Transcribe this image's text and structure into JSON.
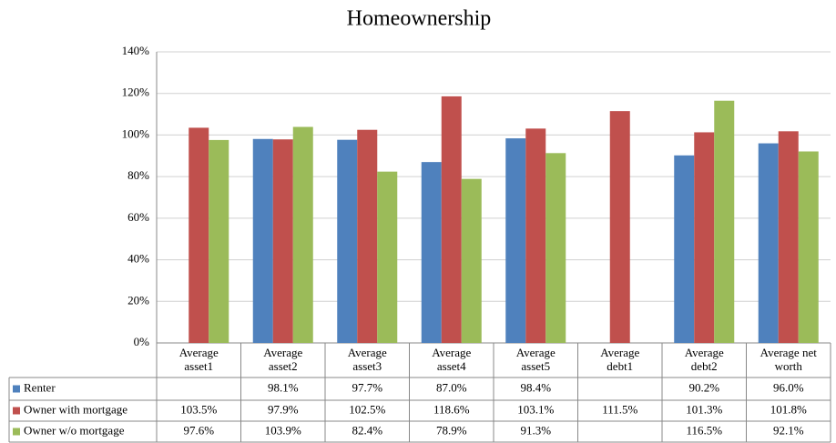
{
  "chart_data": {
    "type": "bar",
    "title": "Homeownership",
    "categories": [
      "Average asset1",
      "Average asset2",
      "Average asset3",
      "Average asset4",
      "Average asset5",
      "Average debt1",
      "Average debt2",
      "Average net worth"
    ],
    "series": [
      {
        "name": "Renter",
        "color": "#4f81bd",
        "values": [
          null,
          98.1,
          97.7,
          87.0,
          98.4,
          null,
          90.2,
          96.0
        ],
        "value_labels": [
          null,
          "98.1%",
          "97.7%",
          "87.0%",
          "98.4%",
          null,
          "90.2%",
          "96.0%"
        ]
      },
      {
        "name": "Owner with mortgage",
        "color": "#c0504d",
        "values": [
          103.5,
          97.9,
          102.5,
          118.6,
          103.1,
          111.5,
          101.3,
          101.8
        ],
        "value_labels": [
          "103.5%",
          "97.9%",
          "102.5%",
          "118.6%",
          "103.1%",
          "111.5%",
          "101.3%",
          "101.8%"
        ]
      },
      {
        "name": "Owner w/o mortgage",
        "color": "#9bbb59",
        "values": [
          97.6,
          103.9,
          82.4,
          78.9,
          91.3,
          null,
          116.5,
          92.1
        ],
        "value_labels": [
          "97.6%",
          "103.9%",
          "82.4%",
          "78.9%",
          "91.3%",
          null,
          "116.5%",
          "92.1%"
        ]
      }
    ],
    "ylim": [
      0,
      140
    ],
    "yticks": [
      {
        "value": 0,
        "label": "0%"
      },
      {
        "value": 20,
        "label": "20%"
      },
      {
        "value": 40,
        "label": "40%"
      },
      {
        "value": 60,
        "label": "60%"
      },
      {
        "value": 80,
        "label": "80%"
      },
      {
        "value": 100,
        "label": "100%"
      },
      {
        "value": 120,
        "label": "120%"
      },
      {
        "value": 140,
        "label": "140%"
      }
    ],
    "grid": true
  }
}
